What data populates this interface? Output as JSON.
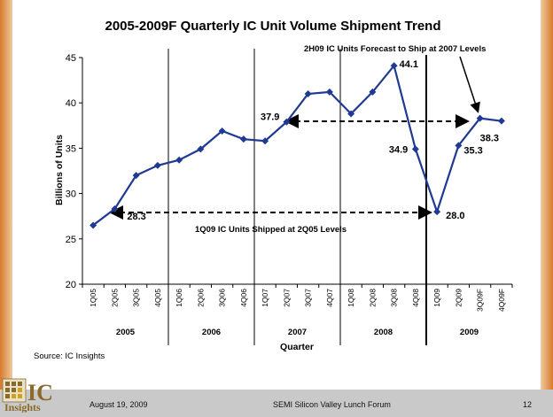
{
  "chart_data": {
    "type": "line",
    "title": "2005-2009F Quarterly IC Unit Volume Shipment Trend",
    "xlabel": "Quarter",
    "ylabel": "Billions of Units",
    "ylim": [
      20,
      45
    ],
    "yticks": [
      20,
      25,
      30,
      35,
      40,
      45
    ],
    "grid": false,
    "categories": [
      "1Q05",
      "2Q05",
      "3Q05",
      "4Q05",
      "1Q06",
      "2Q06",
      "3Q06",
      "4Q06",
      "1Q07",
      "2Q07",
      "3Q07",
      "4Q07",
      "1Q08",
      "2Q08",
      "3Q08",
      "4Q08",
      "1Q09",
      "2Q09",
      "3Q09F",
      "4Q09F"
    ],
    "years": [
      "2005",
      "2006",
      "2007",
      "2008",
      "2009"
    ],
    "series": [
      {
        "values": [
          26.5,
          28.3,
          32.0,
          33.1,
          33.7,
          34.9,
          36.9,
          36.0,
          35.8,
          37.9,
          41.0,
          41.2,
          38.8,
          41.2,
          44.1,
          34.9,
          28.0,
          35.3,
          38.3,
          38.0
        ]
      }
    ],
    "color": "#1f3a93",
    "data_labels": [
      {
        "index": 1,
        "text": "28.3"
      },
      {
        "index": 9,
        "text": "37.9"
      },
      {
        "index": 14,
        "text": "44.1"
      },
      {
        "index": 15,
        "text": "34.9"
      },
      {
        "index": 16,
        "text": "28.0"
      },
      {
        "index": 17,
        "text": "35.3"
      },
      {
        "index": 18,
        "text": "38.3"
      }
    ],
    "annotations": [
      "2H09 IC Units Forecast to Ship at 2007 Levels",
      "1Q09 IC Units Shipped at 2Q05 Levels"
    ],
    "source": "Source: IC Insights"
  },
  "footer": {
    "date": "August 19, 2009",
    "event": "SEMI Silicon Valley Lunch Forum",
    "page": "12"
  },
  "logo": {
    "line1": "IC",
    "line2": "Insights"
  }
}
